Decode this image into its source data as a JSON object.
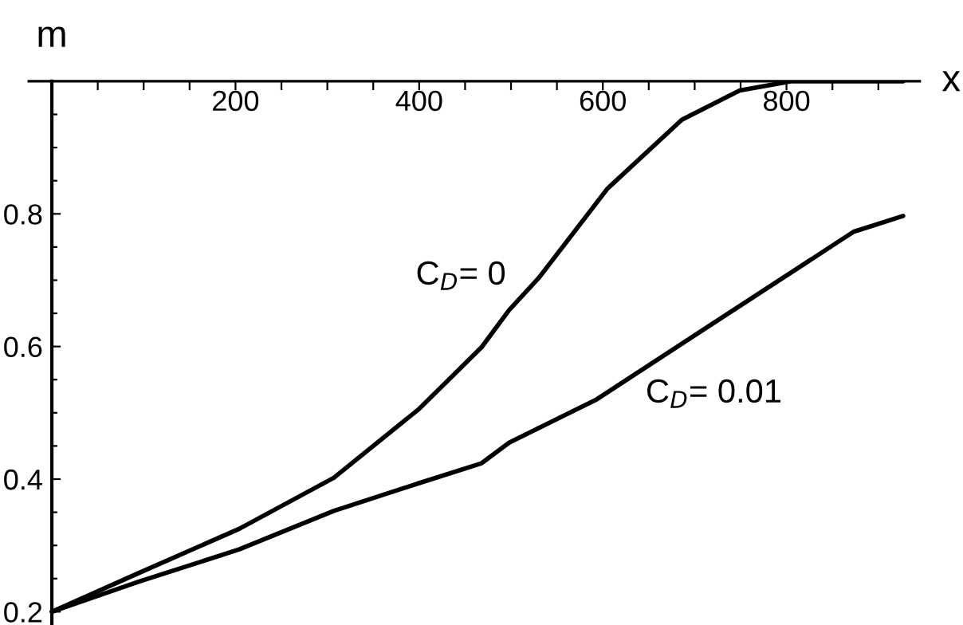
{
  "chart_data": {
    "type": "line",
    "xlabel": "x",
    "ylabel": "m",
    "xlim": [
      -25,
      945
    ],
    "ylim": [
      0.18,
      1.0
    ],
    "xticks": [
      {
        "value": 50,
        "label": null
      },
      {
        "value": 100,
        "label": null
      },
      {
        "value": 150,
        "label": null
      },
      200,
      {
        "value": 250,
        "label": null
      },
      {
        "value": 300,
        "label": null
      },
      {
        "value": 350,
        "label": null
      },
      400,
      {
        "value": 450,
        "label": null
      },
      {
        "value": 500,
        "label": null
      },
      {
        "value": 550,
        "label": null
      },
      600,
      {
        "value": 650,
        "label": null
      },
      {
        "value": 700,
        "label": null
      },
      {
        "value": 750,
        "label": null
      },
      800,
      {
        "value": 850,
        "label": null
      },
      {
        "value": 900,
        "label": null
      }
    ],
    "yticks": [
      0.2,
      {
        "value": 0.25,
        "label": null
      },
      {
        "value": 0.3,
        "label": null
      },
      {
        "value": 0.35,
        "label": null
      },
      0.4,
      {
        "value": 0.45,
        "label": null
      },
      {
        "value": 0.5,
        "label": null
      },
      {
        "value": 0.55,
        "label": null
      },
      0.6,
      {
        "value": 0.65,
        "label": null
      },
      {
        "value": 0.7,
        "label": null
      },
      {
        "value": 0.75,
        "label": null
      },
      0.8,
      {
        "value": 0.85,
        "label": null
      },
      {
        "value": 0.9,
        "label": null
      },
      {
        "value": 0.95,
        "label": null
      }
    ],
    "grid": false,
    "legend": false,
    "marker": "none",
    "line_style": "solid",
    "series": [
      {
        "color": "#000000",
        "x": [
          0,
          94,
          204,
          307,
          400,
          468,
          498,
          530,
          605,
          686,
          749,
          805,
          927
        ],
        "values": [
          0.2,
          0.258,
          0.325,
          0.402,
          0.506,
          0.599,
          0.655,
          0.703,
          0.838,
          0.942,
          0.986,
          1.0,
          1.0
        ]
      },
      {
        "color": "#000000",
        "x": [
          0,
          94,
          204,
          307,
          400,
          468,
          498,
          593,
          718,
          810,
          873,
          927
        ],
        "values": [
          0.2,
          0.245,
          0.294,
          0.352,
          0.394,
          0.424,
          0.455,
          0.52,
          0.633,
          0.716,
          0.773,
          0.797
        ]
      }
    ],
    "annotations": [
      "C$_{D}$= 0",
      "C$_{D}$= 0.01"
    ]
  }
}
